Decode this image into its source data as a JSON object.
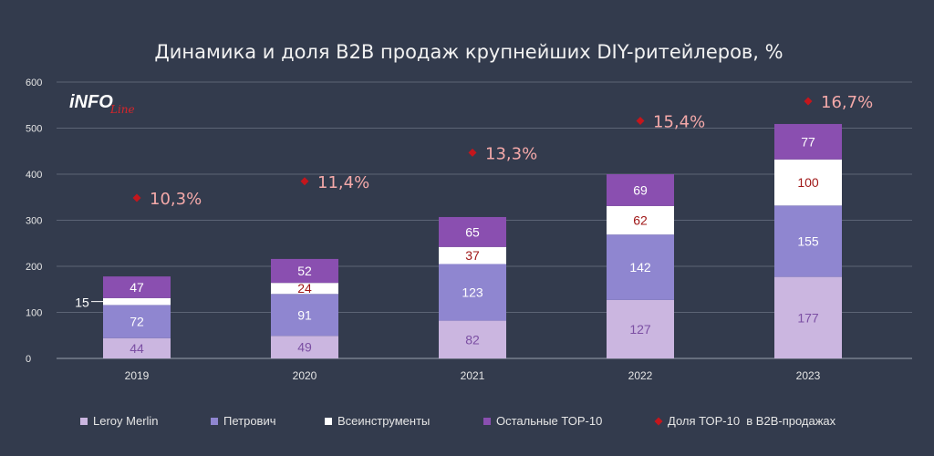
{
  "logo": {
    "main": "iNFO",
    "sub": "Line"
  },
  "chart_data": {
    "type": "bar",
    "stacked": true,
    "title": "Динамика и доля B2B продаж крупнейших DIY-ритейлеров, %",
    "categories": [
      "2019",
      "2020",
      "2021",
      "2022",
      "2023"
    ],
    "ylim": [
      0,
      600
    ],
    "yticks": [
      0,
      100,
      200,
      300,
      400,
      500,
      600
    ],
    "grid": true,
    "legend_position": "bottom",
    "series": [
      {
        "name": "Leroy Merlin",
        "values": [
          44,
          49,
          82,
          127,
          177
        ],
        "color": "#cbb6e0",
        "label_color": "#7b4fa3"
      },
      {
        "name": "Петрович",
        "values": [
          72,
          91,
          123,
          142,
          155
        ],
        "color": "#8f86d0",
        "label_color": "#ffffff"
      },
      {
        "name": "Всеинструменты",
        "values": [
          15,
          24,
          37,
          62,
          100
        ],
        "color": "#ffffff",
        "label_color": "#a01818"
      },
      {
        "name": "Остальные ТОР-10",
        "values": [
          47,
          52,
          65,
          69,
          77
        ],
        "color": "#8a4fb0",
        "label_color": "#ffffff"
      }
    ],
    "share_series": {
      "name": "Доля ТОР-10  в B2B-продажах",
      "values": [
        10.3,
        11.4,
        13.3,
        15.4,
        16.7
      ],
      "labels": [
        "10,3%",
        "11,4%",
        "13,3%",
        "15,4%",
        "16,7%"
      ],
      "color": "#c4161c"
    }
  }
}
